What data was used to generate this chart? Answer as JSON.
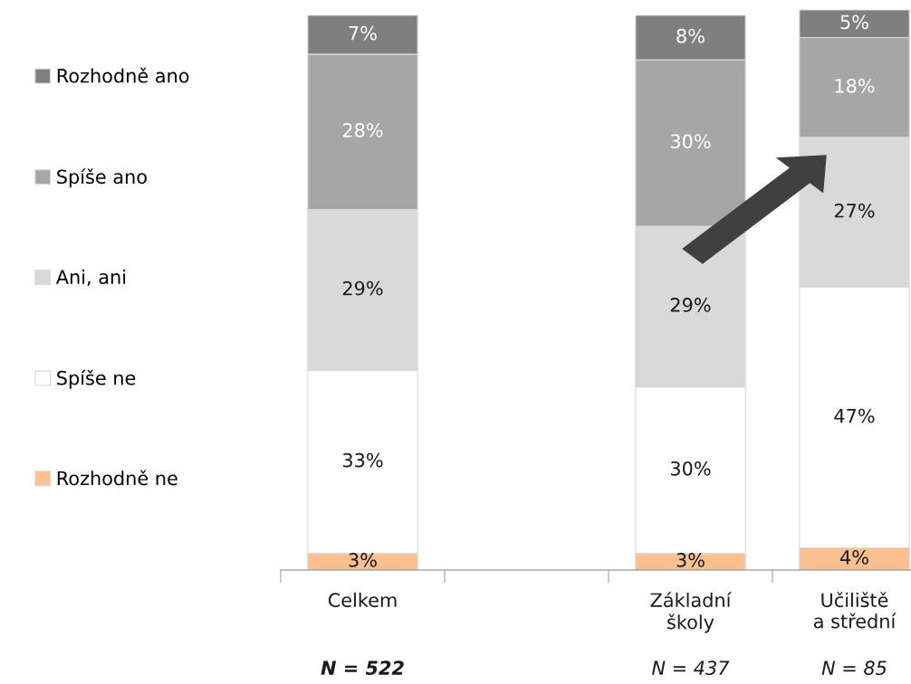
{
  "chart_data": {
    "type": "bar",
    "stacked": true,
    "legend": "left",
    "categories": [
      "Celkem",
      null,
      "Základní\nškoly",
      "Učiliště\na střední"
    ],
    "series": [
      {
        "name": "Rozhodně ne",
        "color": "#fac090",
        "values": [
          3,
          null,
          3,
          4
        ],
        "value_labels": [
          "3%",
          null,
          "3%",
          "4%"
        ]
      },
      {
        "name": "Spíše ne",
        "color": "#ffffff",
        "values": [
          33,
          null,
          30,
          47
        ],
        "value_labels": [
          "33%",
          null,
          "30%",
          "47%"
        ]
      },
      {
        "name": "Ani, ani",
        "color": "#d9d9d9",
        "values": [
          29,
          null,
          29,
          27
        ],
        "value_labels": [
          "29%",
          null,
          "29%",
          "27%"
        ]
      },
      {
        "name": "Spíše ano",
        "color": "#a6a6a6",
        "values": [
          28,
          null,
          30,
          18
        ],
        "value_labels": [
          "28%",
          null,
          "30%",
          "18%"
        ]
      },
      {
        "name": "Rozhodně ano",
        "color": "#7f7f7f",
        "values": [
          7,
          null,
          8,
          5
        ],
        "value_labels": [
          "7%",
          null,
          "8%",
          "5%"
        ]
      }
    ],
    "annotations": [
      "N = 522",
      "N = 437",
      "N = 85"
    ]
  }
}
